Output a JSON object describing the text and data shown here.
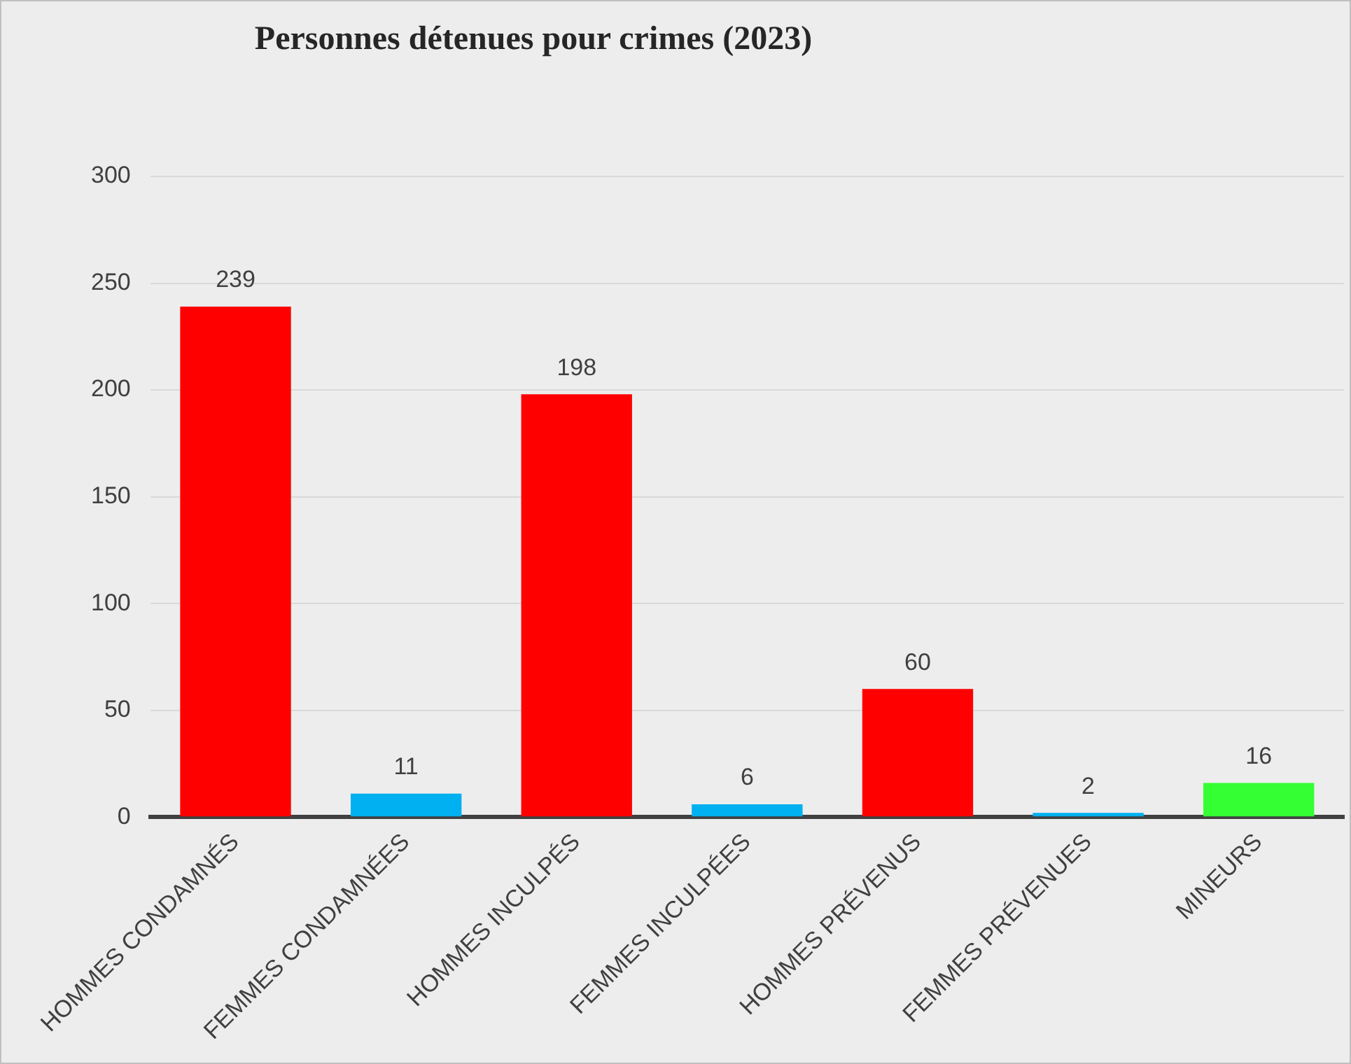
{
  "chart_data": {
    "type": "bar",
    "title": "Personnes détenues pour crimes (2023)",
    "categories": [
      "HOMMES CONDAMNÉS",
      "FEMMES CONDAMNÉES",
      "HOMMES INCULPÉS",
      "FEMMES INCULPÉES",
      "HOMMES PRÉVENUS",
      "FEMMES PRÉVENUES",
      "MINEURS"
    ],
    "values": [
      239,
      11,
      198,
      6,
      60,
      2,
      16
    ],
    "colors": [
      "#ff0000",
      "#00b0f0",
      "#ff0000",
      "#00b0f0",
      "#ff0000",
      "#00b0f0",
      "#33ff33"
    ],
    "ylim": [
      0,
      300
    ],
    "yticks": [
      0,
      50,
      100,
      150,
      200,
      250,
      300
    ],
    "grid": "y",
    "data_labels": true,
    "legend": false
  }
}
